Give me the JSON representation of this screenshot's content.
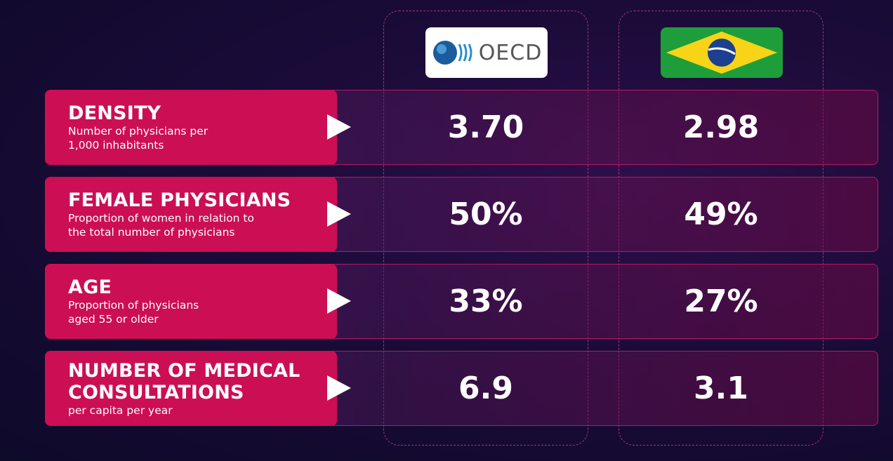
{
  "header": {
    "oecd_logo": "OECD"
  },
  "rows": [
    {
      "title": "DENSITY",
      "description": [
        "Number of physicians per",
        "1,000 inhabitants"
      ],
      "oecd": "3.70",
      "brazil": "2.98"
    },
    {
      "title": "FEMALE PHYSICIANS",
      "description": [
        "Proportion of women in relation to",
        "the total number of physicians"
      ],
      "oecd": "50%",
      "brazil": "49%"
    },
    {
      "title": "AGE",
      "description": [
        "Proportion of physicians",
        "aged 55 or older"
      ],
      "oecd": "33%",
      "brazil": "27%"
    },
    {
      "title": "NUMBER OF MEDICAL CONSULTATIONS",
      "description": [
        "per capita per year"
      ],
      "oecd": "6.9",
      "brazil": "3.1"
    }
  ]
}
